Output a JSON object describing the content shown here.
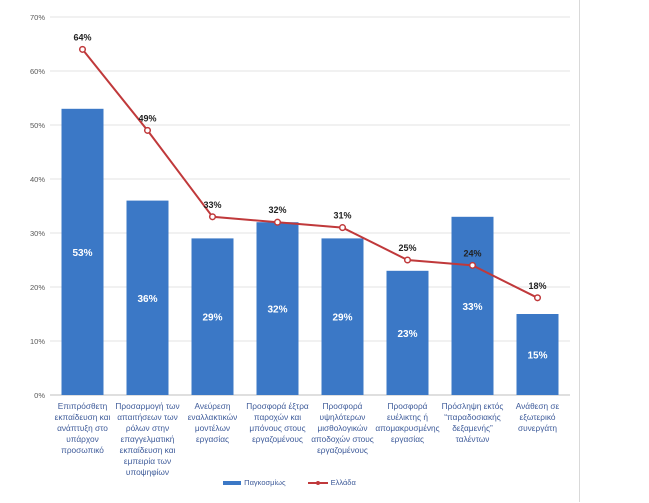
{
  "chart_data": {
    "type": "bar+line",
    "categories": [
      "Επιπρόσθετη εκπαίδευση και ανάπτυξη στο υπάρχον προσωπικό",
      "Προσαρμογή των απαιτήσεων των ρόλων στην επαγγελματική εκπαίδευση και εμπειρία των υποψηφίων",
      "Ανεύρεση εναλλακτικών μοντέλων εργασίας",
      "Προσφορά έξτρα παροχών και μπόνους στους εργαζομένους",
      "Προσφορά υψηλότερων μισθολογικών αποδοχών στους εργαζομένους",
      "Προσφορά ευέλικτης ή απομακρυσμένης εργασίας",
      "Πρόσληψη εκτός “παραδοσιακής δεξαμενής” ταλέντων",
      "Ανάθεση σε εξωτερικό συνεργάτη"
    ],
    "series": [
      {
        "name": "Παγκοσμίως",
        "type": "bar",
        "color": "#3b78c6",
        "values": [
          53,
          36,
          29,
          32,
          29,
          23,
          33,
          15
        ],
        "labels": [
          "53%",
          "36%",
          "29%",
          "32%",
          "29%",
          "23%",
          "33%",
          "15%"
        ]
      },
      {
        "name": "Ελλάδα",
        "type": "line",
        "color": "#c0393b",
        "values": [
          64,
          49,
          33,
          32,
          31,
          25,
          24,
          18
        ],
        "labels": [
          "64%",
          "49%",
          "33%",
          "32%",
          "31%",
          "25%",
          "24%",
          "18%"
        ]
      }
    ],
    "ylim": [
      0,
      70
    ],
    "yticks": [
      "0%",
      "10%",
      "20%",
      "30%",
      "40%",
      "50%",
      "60%",
      "70%"
    ],
    "grid": true,
    "legend": "bottom"
  }
}
